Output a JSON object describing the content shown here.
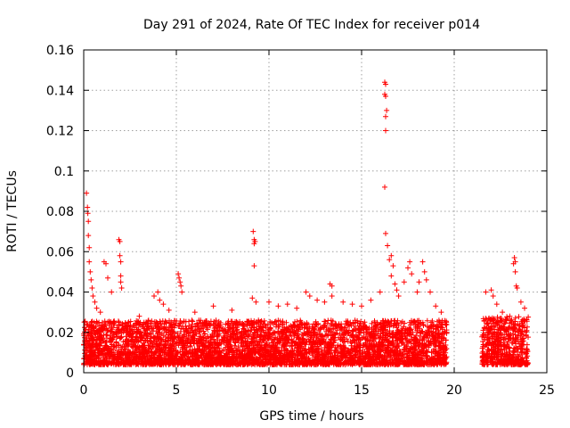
{
  "chart_data": {
    "type": "scatter",
    "title": "Day 291 of 2024, Rate Of TEC Index for receiver p014",
    "xlabel": "GPS time / hours",
    "ylabel": "ROTI / TECUs",
    "xlim": [
      0,
      25
    ],
    "ylim": [
      0,
      0.16
    ],
    "xticks": [
      0,
      5,
      10,
      15,
      20,
      25
    ],
    "yticks": [
      0,
      0.02,
      0.04,
      0.06,
      0.08,
      0.1,
      0.12,
      0.14,
      0.16
    ],
    "xtick_labels": [
      "0",
      "5",
      "10",
      "15",
      "20",
      "25"
    ],
    "ytick_labels": [
      "0",
      "0.02",
      "0.04",
      "0.06",
      "0.08",
      "0.1",
      "0.12",
      "0.14",
      "0.16"
    ],
    "grid": true,
    "marker": "plus",
    "marker_color": "#ff0000",
    "data_gap_hours": [
      19.6,
      21.5
    ],
    "series": [
      {
        "name": "ROTI",
        "points": [
          [
            0.15,
            0.089
          ],
          [
            0.2,
            0.082
          ],
          [
            0.22,
            0.079
          ],
          [
            0.25,
            0.075
          ],
          [
            0.25,
            0.068
          ],
          [
            0.3,
            0.062
          ],
          [
            0.3,
            0.055
          ],
          [
            0.35,
            0.05
          ],
          [
            0.4,
            0.046
          ],
          [
            0.45,
            0.042
          ],
          [
            0.5,
            0.038
          ],
          [
            0.6,
            0.035
          ],
          [
            0.7,
            0.032
          ],
          [
            0.9,
            0.03
          ],
          [
            1.1,
            0.055
          ],
          [
            1.2,
            0.054
          ],
          [
            1.3,
            0.047
          ],
          [
            1.5,
            0.04
          ],
          [
            1.9,
            0.066
          ],
          [
            1.95,
            0.065
          ],
          [
            1.95,
            0.058
          ],
          [
            2.0,
            0.055
          ],
          [
            2.0,
            0.048
          ],
          [
            2.0,
            0.045
          ],
          [
            2.05,
            0.042
          ],
          [
            3.0,
            0.028
          ],
          [
            3.8,
            0.038
          ],
          [
            4.0,
            0.04
          ],
          [
            4.1,
            0.036
          ],
          [
            4.3,
            0.034
          ],
          [
            4.6,
            0.031
          ],
          [
            5.1,
            0.049
          ],
          [
            5.15,
            0.047
          ],
          [
            5.2,
            0.045
          ],
          [
            5.25,
            0.043
          ],
          [
            5.3,
            0.04
          ],
          [
            6.0,
            0.03
          ],
          [
            7.0,
            0.033
          ],
          [
            8.0,
            0.031
          ],
          [
            9.15,
            0.07
          ],
          [
            9.2,
            0.066
          ],
          [
            9.2,
            0.064
          ],
          [
            9.25,
            0.065
          ],
          [
            9.2,
            0.053
          ],
          [
            9.1,
            0.037
          ],
          [
            9.3,
            0.035
          ],
          [
            10.0,
            0.035
          ],
          [
            10.5,
            0.033
          ],
          [
            11.0,
            0.034
          ],
          [
            11.5,
            0.032
          ],
          [
            12.0,
            0.04
          ],
          [
            12.2,
            0.038
          ],
          [
            12.6,
            0.036
          ],
          [
            13.0,
            0.035
          ],
          [
            13.3,
            0.044
          ],
          [
            13.4,
            0.043
          ],
          [
            13.4,
            0.038
          ],
          [
            14.0,
            0.035
          ],
          [
            14.5,
            0.034
          ],
          [
            15.0,
            0.033
          ],
          [
            15.5,
            0.036
          ],
          [
            16.0,
            0.04
          ],
          [
            16.25,
            0.144
          ],
          [
            16.3,
            0.143
          ],
          [
            16.25,
            0.138
          ],
          [
            16.3,
            0.137
          ],
          [
            16.35,
            0.13
          ],
          [
            16.3,
            0.127
          ],
          [
            16.3,
            0.12
          ],
          [
            16.25,
            0.092
          ],
          [
            16.3,
            0.069
          ],
          [
            16.4,
            0.063
          ],
          [
            16.5,
            0.056
          ],
          [
            16.6,
            0.058
          ],
          [
            16.7,
            0.053
          ],
          [
            16.6,
            0.048
          ],
          [
            16.8,
            0.044
          ],
          [
            16.9,
            0.041
          ],
          [
            17.0,
            0.038
          ],
          [
            17.3,
            0.045
          ],
          [
            17.5,
            0.052
          ],
          [
            17.6,
            0.055
          ],
          [
            17.7,
            0.049
          ],
          [
            18.0,
            0.04
          ],
          [
            18.1,
            0.045
          ],
          [
            18.3,
            0.055
          ],
          [
            18.4,
            0.05
          ],
          [
            18.5,
            0.046
          ],
          [
            18.7,
            0.04
          ],
          [
            19.0,
            0.033
          ],
          [
            19.3,
            0.03
          ],
          [
            21.7,
            0.04
          ],
          [
            22.0,
            0.041
          ],
          [
            22.1,
            0.038
          ],
          [
            22.3,
            0.034
          ],
          [
            22.6,
            0.03
          ],
          [
            23.0,
            0.028
          ],
          [
            23.2,
            0.054
          ],
          [
            23.25,
            0.057
          ],
          [
            23.3,
            0.055
          ],
          [
            23.3,
            0.05
          ],
          [
            23.35,
            0.043
          ],
          [
            23.4,
            0.042
          ],
          [
            23.6,
            0.035
          ],
          [
            23.8,
            0.032
          ]
        ]
      }
    ],
    "dense_band": {
      "description": "dense cloud of ROTI points forming the baseline",
      "segments": [
        {
          "x_range": [
            0.0,
            19.6
          ],
          "y_low": 0.004,
          "y_high": 0.026
        },
        {
          "x_range": [
            21.5,
            24.0
          ],
          "y_low": 0.004,
          "y_high": 0.028
        }
      ]
    }
  }
}
